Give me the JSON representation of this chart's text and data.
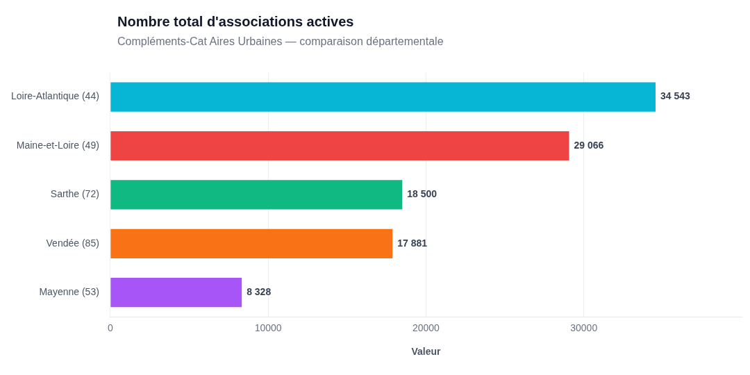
{
  "chart_data": {
    "type": "bar",
    "orientation": "horizontal",
    "title": "Nombre total d'associations actives",
    "subtitle": "Compléments-Cat Aires Urbaines — comparaison départementale",
    "xlabel": "Valeur",
    "categories": [
      "Loire-Atlantique (44)",
      "Maine-et-Loire (49)",
      "Sarthe (72)",
      "Vendée (85)",
      "Mayenne (53)"
    ],
    "values": [
      34543,
      29066,
      18500,
      17881,
      8328
    ],
    "colors": [
      "#06b6d4",
      "#ef4444",
      "#10b981",
      "#f97316",
      "#a855f7"
    ],
    "value_labels": [
      "34 543",
      "29 066",
      "18 500",
      "17 881",
      "8 328"
    ],
    "xlim": [
      0,
      40000
    ],
    "xticks": [
      0,
      10000,
      20000,
      30000
    ],
    "grid": "x",
    "legend": false
  }
}
